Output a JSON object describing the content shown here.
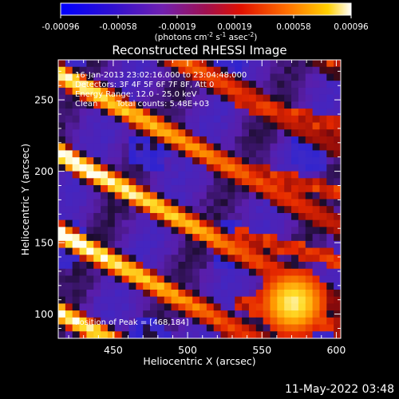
{
  "chart_data": {
    "type": "heatmap",
    "title": "Reconstructed RHESSI Image",
    "xlabel": "Heliocentric X (arcsec)",
    "ylabel": "Heliocentric Y (arcsec)",
    "xlim": [
      413,
      603
    ],
    "ylim": [
      83,
      278
    ],
    "x_ticks": [
      450,
      500,
      550,
      600
    ],
    "y_ticks": [
      100,
      150,
      200,
      250
    ],
    "colorbar": {
      "range": [
        -0.00096,
        0.00096
      ],
      "ticks": [
        "-0.00096",
        "-0.00058",
        "-0.00019",
        "0.00019",
        "0.00058",
        "0.00096"
      ],
      "unit_text": "(photons cm",
      "unit_sup1": "-2",
      "unit_mid": " s",
      "unit_sup2": "-1",
      "unit_mid2": " asec",
      "unit_sup3": "-2",
      "unit_end": ")",
      "colors": [
        "#0000ff",
        "#4010c0",
        "#8020a0",
        "#b01010",
        "#ff4000",
        "#ffa000",
        "#ffffff"
      ]
    },
    "annotations": {
      "time": "16-Jan-2013 23:02:16.000 to 23:04:48.000",
      "detectors": "Detectors: 3F 4F 5F 6F 7F 8F, Att 0",
      "energy": "Energy Range: 12.0 - 25.0 keV",
      "method": "Clean",
      "counts": "Total counts: 5.48E+03",
      "peak": "Position of Peak = [468,184]"
    },
    "peak_position": [
      468,
      184
    ],
    "grid": false,
    "legend": "none"
  },
  "footer": {
    "timestamp": "11-May-2022 03:48"
  }
}
